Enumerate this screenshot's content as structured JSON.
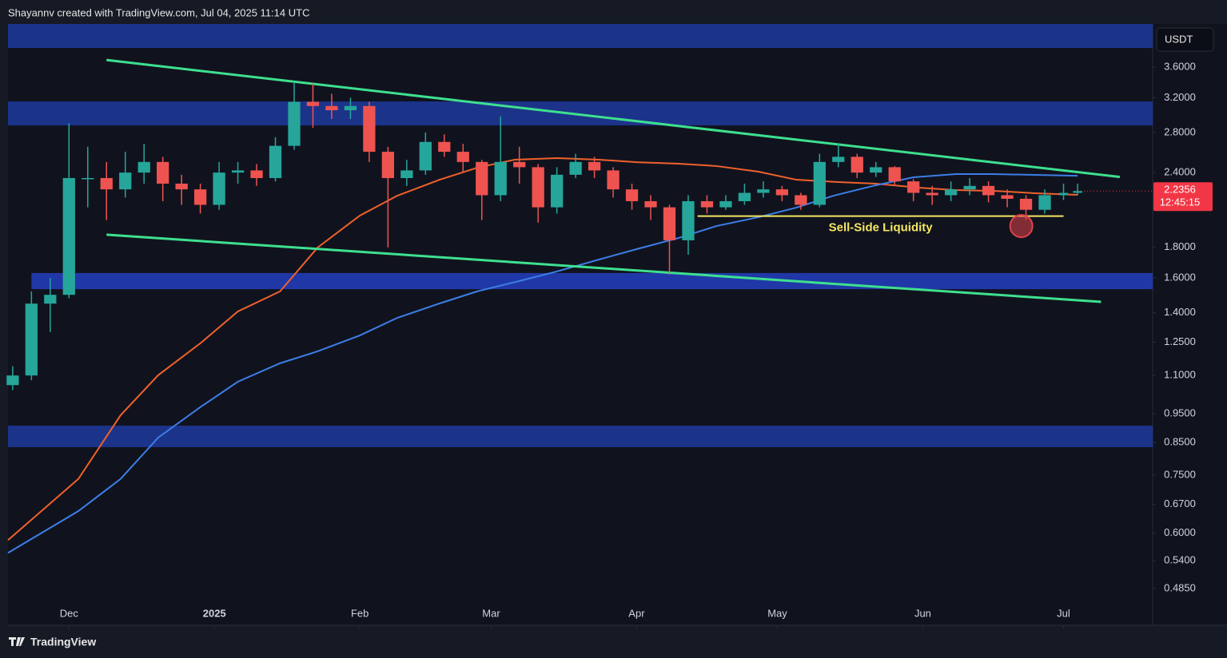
{
  "header": {
    "text": "Shayannv created with TradingView.com, Jul 04, 2025 11:14 UTC"
  },
  "footer": {
    "brand": "TradingView"
  },
  "chart_data": {
    "type": "candlestick",
    "log_scale": true,
    "grid": false,
    "currency": "USDT",
    "up_color": "#26a69a",
    "down_color": "#ef5350",
    "xlim": [
      -1,
      243
    ],
    "ylim": [
      0.421,
      4.25
    ],
    "xticks": [
      {
        "value": 12,
        "label": "Dec"
      },
      {
        "value": 43,
        "label": "2025"
      },
      {
        "value": 74,
        "label": "Feb"
      },
      {
        "value": 102,
        "label": "Mar"
      },
      {
        "value": 133,
        "label": "Apr"
      },
      {
        "value": 163,
        "label": "May"
      },
      {
        "value": 194,
        "label": "Jun"
      },
      {
        "value": 224,
        "label": "Jul"
      }
    ],
    "yticks": [
      {
        "value": 3.6,
        "label": "3.6000"
      },
      {
        "value": 3.2,
        "label": "3.2000"
      },
      {
        "value": 2.8,
        "label": "2.8000"
      },
      {
        "value": 2.4,
        "label": "2.4000"
      },
      {
        "value": 1.8,
        "label": "1.8000"
      },
      {
        "value": 1.6,
        "label": "1.6000"
      },
      {
        "value": 1.4,
        "label": "1.4000"
      },
      {
        "value": 1.25,
        "label": "1.2500"
      },
      {
        "value": 1.1,
        "label": "1.1000"
      },
      {
        "value": 0.95,
        "label": "0.9500"
      },
      {
        "value": 0.85,
        "label": "0.8500"
      },
      {
        "value": 0.75,
        "label": "0.7500"
      },
      {
        "value": 0.67,
        "label": "0.6700"
      },
      {
        "value": 0.6,
        "label": "0.6000"
      },
      {
        "value": 0.54,
        "label": "0.5400"
      },
      {
        "value": 0.485,
        "label": "0.4850"
      }
    ],
    "x": [
      0,
      4,
      8,
      12,
      16,
      20,
      24,
      28,
      32,
      36,
      40,
      44,
      48,
      52,
      56,
      60,
      64,
      68,
      72,
      76,
      80,
      84,
      88,
      92,
      96,
      100,
      104,
      108,
      112,
      116,
      120,
      124,
      128,
      132,
      136,
      140,
      144,
      148,
      152,
      156,
      160,
      164,
      168,
      172,
      176,
      180,
      184,
      188,
      192,
      196,
      200,
      204,
      208,
      212,
      216,
      220,
      224,
      227
    ],
    "open": [
      1.06,
      1.1,
      1.45,
      1.5,
      2.35,
      2.35,
      2.25,
      2.4,
      2.5,
      2.3,
      2.25,
      2.12,
      2.4,
      2.42,
      2.35,
      2.66,
      3.15,
      3.1,
      3.05,
      3.1,
      2.6,
      2.35,
      2.42,
      2.7,
      2.6,
      2.5,
      2.2,
      2.5,
      2.45,
      2.1,
      2.38,
      2.5,
      2.42,
      2.25,
      2.15,
      2.1,
      1.85,
      2.15,
      2.1,
      2.15,
      2.22,
      2.25,
      2.2,
      2.12,
      2.5,
      2.55,
      2.4,
      2.45,
      2.32,
      2.22,
      2.2,
      2.25,
      2.28,
      2.2,
      2.17,
      2.08,
      2.2,
      2.22
    ],
    "high": [
      1.14,
      1.52,
      1.6,
      2.9,
      2.65,
      2.5,
      2.6,
      2.68,
      2.55,
      2.38,
      2.3,
      2.5,
      2.5,
      2.48,
      2.75,
      3.4,
      3.38,
      3.25,
      3.2,
      3.15,
      2.65,
      2.52,
      2.8,
      2.78,
      2.68,
      2.52,
      2.98,
      2.65,
      2.48,
      2.45,
      2.58,
      2.55,
      2.45,
      2.3,
      2.2,
      2.12,
      2.2,
      2.2,
      2.2,
      2.3,
      2.32,
      2.28,
      2.22,
      2.58,
      2.68,
      2.58,
      2.5,
      2.46,
      2.34,
      2.28,
      2.32,
      2.35,
      2.32,
      2.25,
      2.2,
      2.25,
      2.3,
      2.3
    ],
    "low": [
      1.04,
      1.08,
      1.3,
      1.48,
      2.1,
      2.0,
      2.18,
      2.3,
      2.15,
      2.12,
      2.05,
      2.08,
      2.3,
      2.28,
      2.32,
      2.62,
      2.85,
      2.95,
      2.95,
      2.5,
      1.8,
      2.28,
      2.38,
      2.55,
      2.4,
      2.0,
      2.15,
      2.3,
      1.98,
      2.05,
      2.35,
      2.35,
      2.18,
      2.08,
      2.0,
      1.62,
      1.75,
      2.05,
      2.08,
      2.12,
      2.18,
      2.15,
      2.08,
      2.1,
      2.45,
      2.35,
      2.36,
      2.28,
      2.15,
      2.12,
      2.15,
      2.2,
      2.14,
      2.1,
      2.0,
      2.05,
      2.16,
      2.2
    ],
    "close": [
      1.1,
      1.45,
      1.5,
      2.35,
      2.35,
      2.25,
      2.4,
      2.5,
      2.3,
      2.25,
      2.12,
      2.4,
      2.42,
      2.35,
      2.66,
      3.15,
      3.1,
      3.05,
      3.1,
      2.6,
      2.35,
      2.42,
      2.7,
      2.6,
      2.5,
      2.2,
      2.5,
      2.45,
      2.1,
      2.38,
      2.5,
      2.42,
      2.25,
      2.15,
      2.1,
      1.85,
      2.15,
      2.1,
      2.15,
      2.22,
      2.25,
      2.2,
      2.12,
      2.5,
      2.55,
      2.4,
      2.45,
      2.32,
      2.22,
      2.2,
      2.25,
      2.28,
      2.2,
      2.17,
      2.08,
      2.2,
      2.22,
      2.2356
    ],
    "last_price": 2.2356,
    "last_price_color": "#f23645",
    "countdown": "12:45:15",
    "zones": [
      {
        "color": "#1e3a9e",
        "x": [
          -1,
          243
        ],
        "top": 4.25,
        "bottom": 3.875
      },
      {
        "color": "#1e3a9e",
        "x": [
          -1,
          243
        ],
        "top": 3.155,
        "bottom": 2.877
      },
      {
        "color": "#2340c0",
        "x": [
          4,
          243
        ],
        "top": 1.631,
        "bottom": 1.533
      },
      {
        "color": "#1e3a9e",
        "x": [
          -1,
          243
        ],
        "top": 0.907,
        "bottom": 0.835
      }
    ],
    "moving_averages": [
      {
        "color": "#f0612b",
        "x": [
          -1,
          14,
          23,
          31,
          40,
          48,
          57,
          65,
          74,
          82,
          91,
          99,
          107,
          116,
          125,
          133,
          142,
          150,
          159,
          167,
          176,
          184,
          193,
          201,
          210,
          218,
          227
        ],
        "values": [
          0.584,
          0.739,
          0.944,
          1.101,
          1.245,
          1.407,
          1.52,
          1.799,
          2.034,
          2.196,
          2.335,
          2.445,
          2.522,
          2.537,
          2.522,
          2.498,
          2.483,
          2.461,
          2.408,
          2.335,
          2.314,
          2.3,
          2.265,
          2.244,
          2.235,
          2.217,
          2.203
        ]
      },
      {
        "color": "#3d7ee8",
        "x": [
          -1,
          14,
          23,
          31,
          40,
          48,
          57,
          65,
          74,
          82,
          91,
          99,
          108,
          116,
          125,
          133,
          142,
          150,
          159,
          167,
          175,
          184,
          192,
          201,
          209,
          227
        ],
        "values": [
          0.556,
          0.653,
          0.739,
          0.866,
          0.974,
          1.074,
          1.153,
          1.207,
          1.283,
          1.373,
          1.451,
          1.52,
          1.582,
          1.641,
          1.718,
          1.788,
          1.867,
          1.954,
          2.022,
          2.097,
          2.196,
          2.286,
          2.357,
          2.386,
          2.386,
          2.371
        ]
      }
    ],
    "trendlines": [
      {
        "color": "#3ee08f",
        "x": [
          20,
          236
        ],
        "values": [
          3.7,
          2.36
        ]
      },
      {
        "color": "#3ee08f",
        "x": [
          20,
          232
        ],
        "values": [
          1.89,
          1.46
        ]
      }
    ],
    "annotation": {
      "text": "Sell-Side Liquidity",
      "color": "#f5e663",
      "x": [
        146,
        224
      ],
      "value": 2.03
    },
    "marker": {
      "color": "#e0424a",
      "x": 215,
      "value": 1.954
    }
  }
}
